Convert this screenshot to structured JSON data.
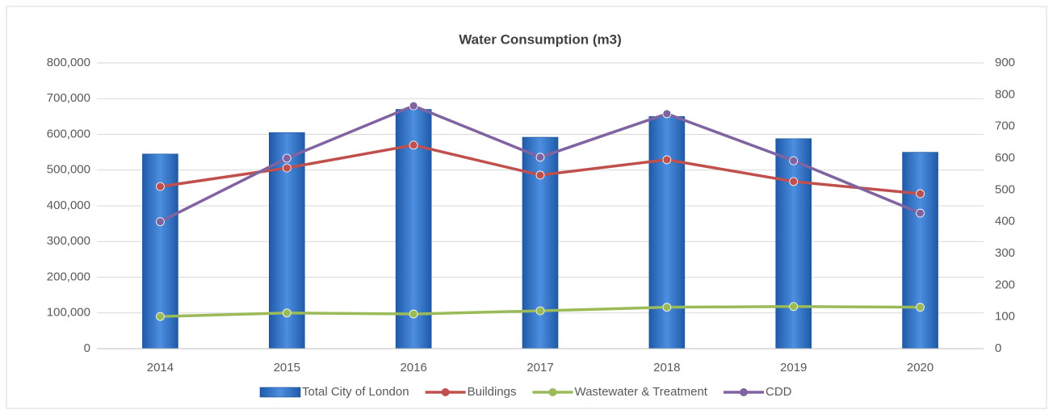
{
  "chart_data": {
    "type": "combo",
    "title": "Water Consumption (m3)",
    "categories": [
      "2014",
      "2015",
      "2016",
      "2017",
      "2018",
      "2019",
      "2020"
    ],
    "series": [
      {
        "name": "Total City of London",
        "type": "bar",
        "color": "#2e75c8",
        "values": [
          545000,
          605000,
          670000,
          592000,
          650000,
          588000,
          550000
        ]
      },
      {
        "name": "Buildings",
        "type": "line",
        "color": "#c0504d",
        "values": [
          454000,
          506000,
          570000,
          486000,
          529000,
          468000,
          434000
        ]
      },
      {
        "name": "Wastewater & Treatment",
        "type": "line",
        "color": "#9bbb59",
        "values": [
          90000,
          100000,
          97000,
          106000,
          116000,
          118000,
          116000
        ]
      },
      {
        "name": "CDD",
        "type": "line",
        "color": "#8064a2",
        "axis": "y2",
        "values": [
          400,
          600,
          765,
          603,
          740,
          592,
          427
        ]
      }
    ],
    "ylim": [
      0,
      800000
    ],
    "yticks": [
      0,
      {
        "value": 100000,
        "label": "100,000"
      },
      {
        "value": 200000,
        "label": "200,000"
      },
      {
        "value": 300000,
        "label": "300,000"
      },
      {
        "value": 400000,
        "label": "400,000"
      },
      {
        "value": 500000,
        "label": "500,000"
      },
      {
        "value": 600000,
        "label": "600,000"
      },
      {
        "value": 700000,
        "label": "700,000"
      },
      {
        "value": 800000,
        "label": "800,000"
      }
    ],
    "y2lim": [
      0,
      900
    ],
    "y2ticks": [
      0,
      100,
      200,
      300,
      400,
      500,
      600,
      700,
      800,
      900
    ],
    "grid": true,
    "legend": "bottom"
  }
}
